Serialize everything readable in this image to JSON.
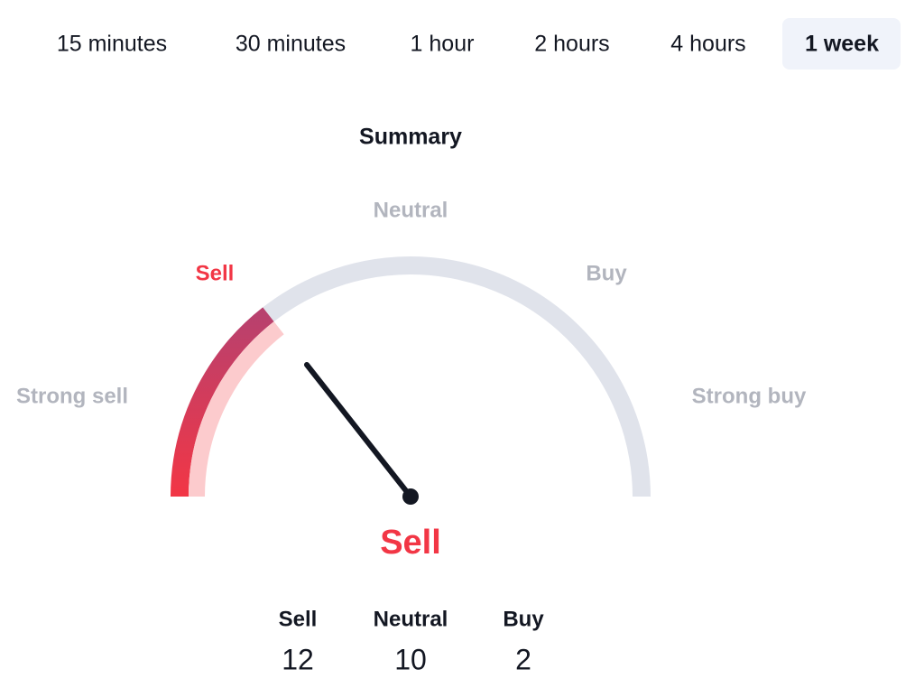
{
  "tabs": [
    "15 minutes",
    "30 minutes",
    "1 hour",
    "2 hours",
    "4 hours",
    "1 week"
  ],
  "summary": {
    "title": "Summary",
    "gauge_labels": {
      "strong_sell": "Strong sell",
      "sell": "Sell",
      "neutral": "Neutral",
      "buy": "Buy",
      "strong_buy": "Strong buy"
    },
    "result": "Sell",
    "counts": [
      {
        "label": "Sell",
        "value": 12
      },
      {
        "label": "Neutral",
        "value": 10
      },
      {
        "label": "Buy",
        "value": 2
      }
    ]
  }
}
